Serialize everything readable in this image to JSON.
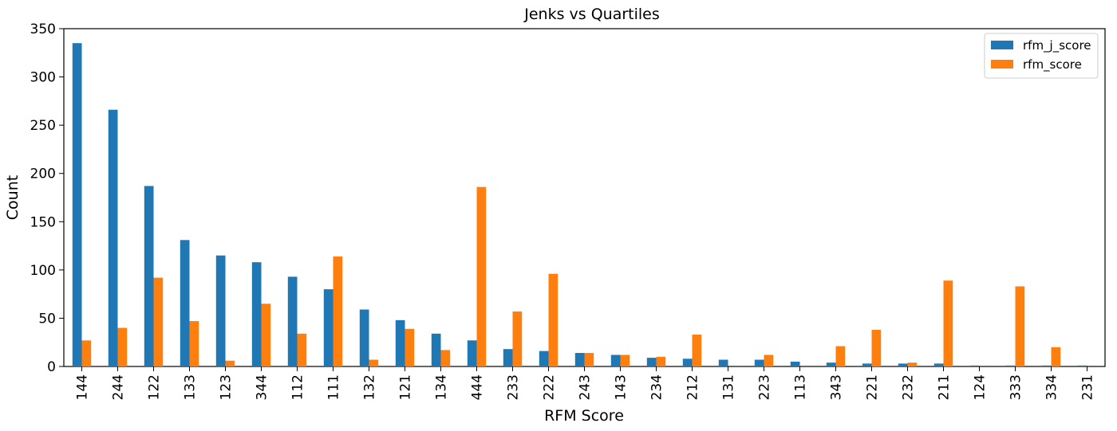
{
  "chart_data": {
    "type": "bar",
    "title": "Jenks vs Quartiles",
    "xlabel": "RFM Score",
    "ylabel": "Count",
    "ylim": [
      0,
      350
    ],
    "yticks": [
      0,
      50,
      100,
      150,
      200,
      250,
      300,
      350
    ],
    "grid": false,
    "legend_position": "top-right",
    "categories": [
      "144",
      "244",
      "122",
      "133",
      "123",
      "344",
      "112",
      "111",
      "132",
      "121",
      "134",
      "444",
      "233",
      "222",
      "243",
      "143",
      "234",
      "212",
      "131",
      "223",
      "113",
      "343",
      "221",
      "232",
      "211",
      "124",
      "333",
      "334",
      "231"
    ],
    "series": [
      {
        "name": "rfm_j_score",
        "color": "#1f77b4",
        "values": [
          335,
          266,
          187,
          131,
          115,
          108,
          93,
          80,
          59,
          48,
          34,
          27,
          18,
          16,
          14,
          12,
          9,
          8,
          7,
          7,
          5,
          4,
          3,
          3,
          3,
          1,
          1,
          1,
          1
        ]
      },
      {
        "name": "rfm_score",
        "color": "#ff7f0e",
        "values": [
          27,
          40,
          92,
          47,
          6,
          65,
          34,
          114,
          7,
          39,
          17,
          186,
          57,
          96,
          14,
          12,
          10,
          33,
          0,
          12,
          0,
          21,
          38,
          4,
          89,
          0,
          83,
          20,
          0
        ]
      }
    ]
  }
}
